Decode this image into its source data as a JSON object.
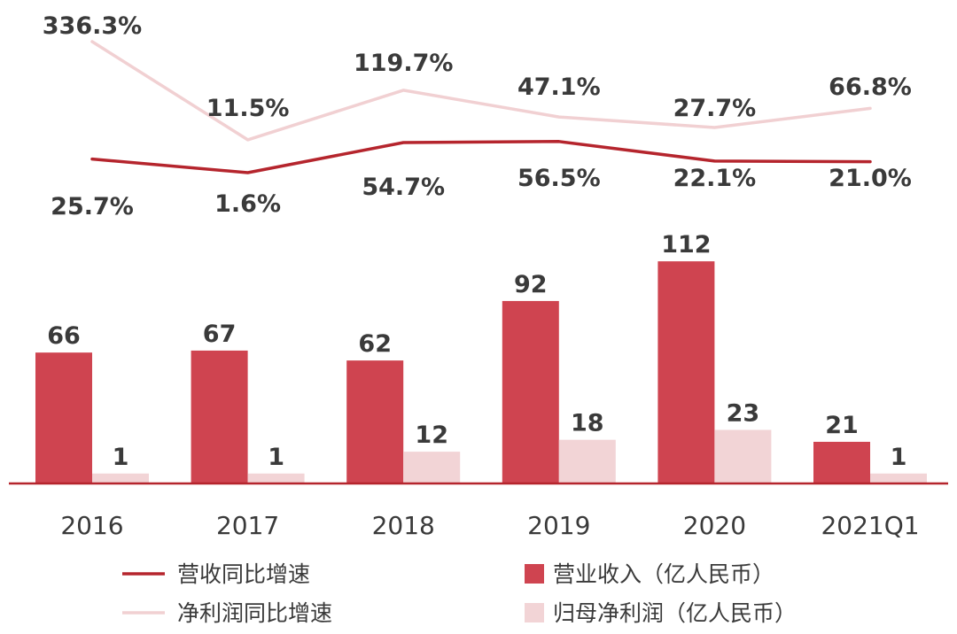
{
  "chart_data": {
    "type": "bar",
    "categories": [
      "2016",
      "2017",
      "2018",
      "2019",
      "2020",
      "2021Q1"
    ],
    "series": [
      {
        "name": "营业收入（亿人民币）",
        "kind": "bar",
        "color": "#cf4450",
        "values": [
          66,
          67,
          62,
          92,
          112,
          21
        ],
        "labels": [
          "66",
          "67",
          "62",
          "92",
          "112",
          "21"
        ]
      },
      {
        "name": "归母净利润（亿人民币）",
        "kind": "bar",
        "color": "#f2d4d6",
        "values": [
          1,
          1,
          12,
          18,
          23,
          1
        ],
        "labels": [
          "1",
          "1",
          "12",
          "18",
          "23",
          "1"
        ]
      },
      {
        "name": "营收同比增速",
        "kind": "line",
        "color": "#b5252d",
        "values": [
          25.7,
          1.6,
          54.7,
          56.5,
          22.1,
          21.0
        ],
        "labels": [
          "25.7%",
          "1.6%",
          "54.7%",
          "56.5%",
          "22.1%",
          "21.0%"
        ]
      },
      {
        "name": "净利润同比增速",
        "kind": "line",
        "color": "#f1d0d2",
        "values": [
          336.3,
          11.5,
          119.7,
          47.1,
          27.7,
          66.8
        ],
        "labels": [
          "336.3%",
          "11.5%",
          "119.7%",
          "47.1%",
          "27.7%",
          "66.8%"
        ]
      }
    ],
    "legend_position": "bottom",
    "grid": false
  }
}
